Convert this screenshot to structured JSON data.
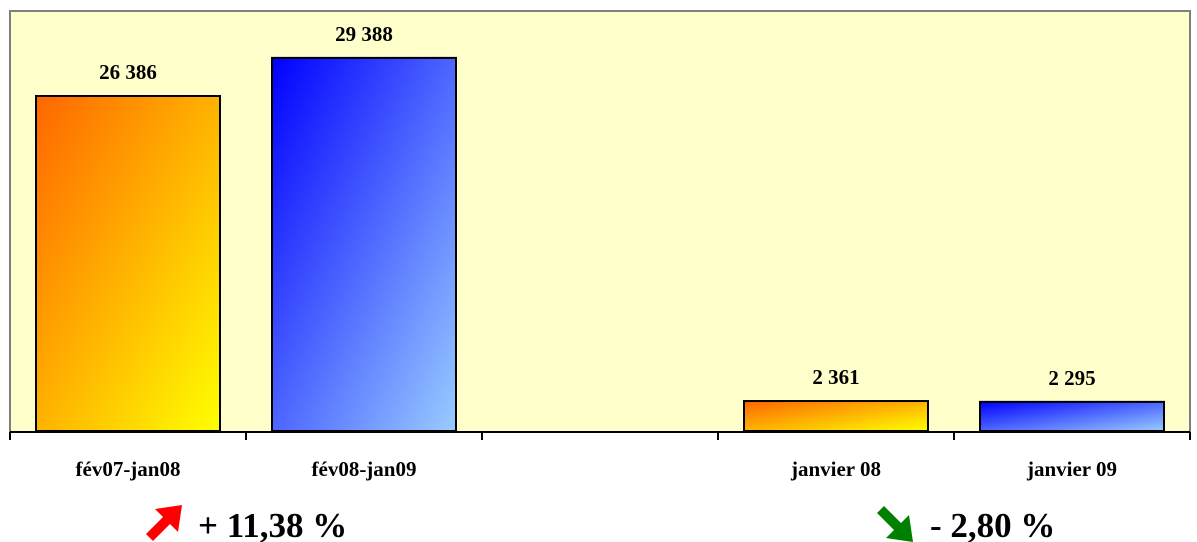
{
  "chart_data": {
    "type": "bar",
    "categories": [
      "fév07-jan08",
      "fév08-jan09",
      "",
      "janvier 08",
      "janvier 09"
    ],
    "values": [
      26386,
      29388,
      null,
      2361,
      2295
    ],
    "value_labels": [
      "26 386",
      "29 388",
      "",
      "2 361",
      "2 295"
    ],
    "ylim": [
      0,
      32000
    ],
    "grid": false,
    "legend": "none",
    "changes": [
      {
        "text": "+ 11,38 %",
        "direction": "up",
        "color": "#ff0000"
      },
      {
        "text": "- 2,80 %",
        "direction": "down",
        "color": "#008000"
      }
    ],
    "colors": {
      "plot_background": "#ffffcc",
      "orange_gradient": [
        "#ff6600",
        "#ffff00"
      ],
      "blue_gradient": [
        "#0000ff",
        "#99ccff"
      ]
    }
  }
}
